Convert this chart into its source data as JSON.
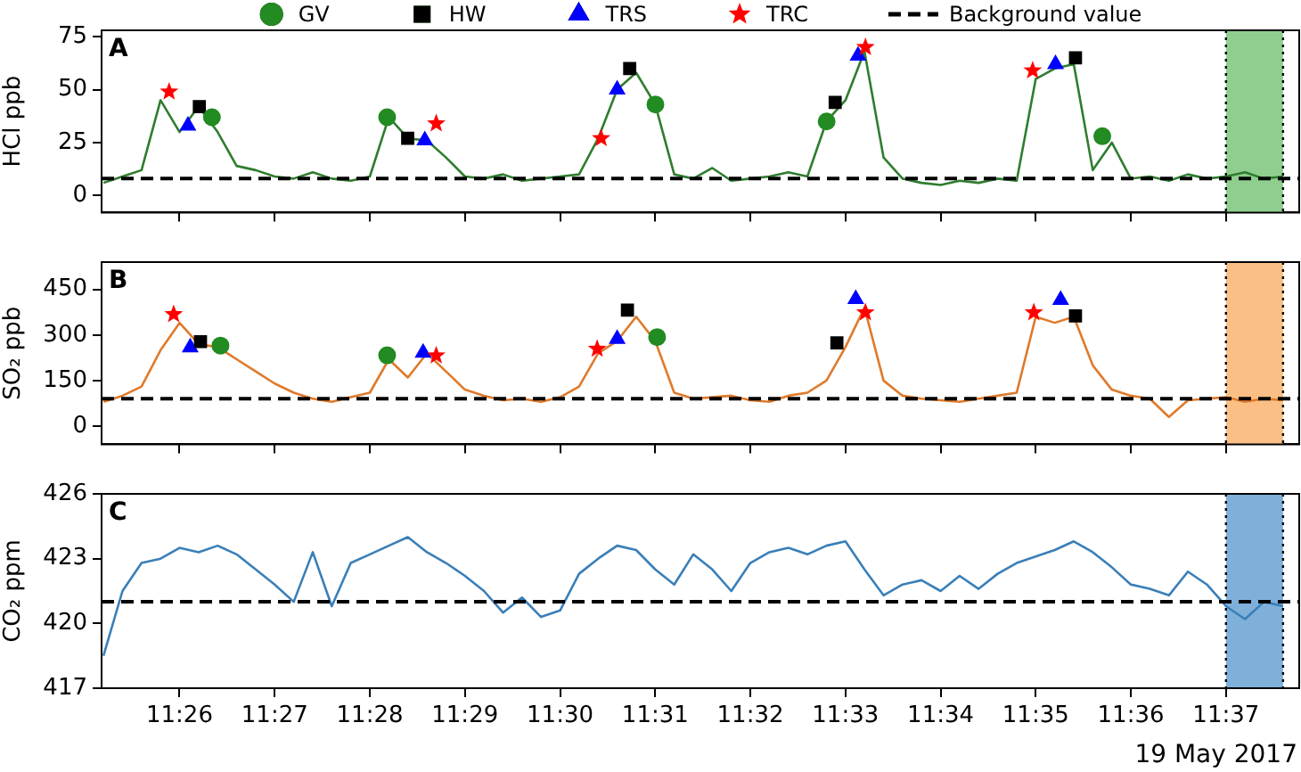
{
  "chart_data": [
    {
      "type": "line",
      "title": "A",
      "ylabel": "HCl ppb",
      "xlim": [
        11.41967,
        11.6295
      ],
      "ylim": [
        -8,
        78
      ],
      "yticks": [
        0,
        25,
        50,
        75
      ],
      "tick_labels": "y",
      "legend": "top",
      "xticks": [
        {
          "value": 11.43333,
          "label": null
        },
        {
          "value": 11.45,
          "label": null
        },
        {
          "value": 11.46667,
          "label": null
        },
        {
          "value": 11.48333,
          "label": null
        },
        {
          "value": 11.5,
          "label": null
        },
        {
          "value": 11.51667,
          "label": null
        },
        {
          "value": 11.53333,
          "label": null
        },
        {
          "value": 11.55,
          "label": null
        },
        {
          "value": 11.56667,
          "label": null
        },
        {
          "value": 11.58333,
          "label": null
        },
        {
          "value": 11.6,
          "label": null
        },
        {
          "value": 11.61667,
          "label": null
        }
      ],
      "x": [
        11.42,
        11.42333,
        11.42667,
        11.43,
        11.43333,
        11.43667,
        11.44,
        11.44333,
        11.44667,
        11.45,
        11.45333,
        11.45667,
        11.46,
        11.46333,
        11.46667,
        11.47,
        11.47333,
        11.47667,
        11.48,
        11.48333,
        11.48667,
        11.49,
        11.49333,
        11.49667,
        11.5,
        11.50333,
        11.50667,
        11.51,
        11.51333,
        11.51667,
        11.52,
        11.52333,
        11.52667,
        11.53,
        11.53333,
        11.53667,
        11.54,
        11.54333,
        11.54667,
        11.55,
        11.55333,
        11.55667,
        11.56,
        11.56333,
        11.56667,
        11.57,
        11.57333,
        11.57667,
        11.58,
        11.58333,
        11.58667,
        11.59,
        11.59333,
        11.59667,
        11.6,
        11.60333,
        11.60667,
        11.61,
        11.61333,
        11.61667,
        11.62,
        11.62333,
        11.62667
      ],
      "series": [
        {
          "color": "#2f7d2f",
          "values": [
            6,
            9,
            12,
            45,
            30,
            42,
            30,
            14,
            12,
            9,
            8,
            11,
            8,
            7,
            9,
            37,
            27,
            26,
            18,
            9,
            8,
            10,
            7,
            8,
            9,
            10,
            27,
            50,
            58,
            43,
            10,
            8,
            13,
            7,
            8,
            9,
            11,
            9,
            35,
            45,
            68,
            18,
            8,
            6,
            5,
            7,
            6,
            8,
            7,
            55,
            60,
            62,
            12,
            25,
            8,
            9,
            7,
            10,
            8,
            9,
            11,
            8,
            9
          ]
        },
        {
          "name": "GV",
          "type": "scatter",
          "marker": "circle",
          "color": "#228b22",
          "x": [
            11.439,
            11.4697,
            11.5167,
            11.5467,
            11.595
          ],
          "values": [
            37,
            37,
            43,
            35,
            28
          ]
        },
        {
          "name": "HW",
          "type": "scatter",
          "marker": "square",
          "color": "#000000",
          "x": [
            11.4368,
            11.4733,
            11.5122,
            11.5482,
            11.5903
          ],
          "values": [
            42,
            27,
            60,
            44,
            65
          ]
        },
        {
          "name": "TRS",
          "type": "scatter",
          "marker": "triangle",
          "color": "#0000ff",
          "x": [
            11.4348,
            11.4763,
            11.51,
            11.5522,
            11.5868
          ],
          "values": [
            33,
            26,
            50,
            66,
            62
          ]
        },
        {
          "name": "TRC",
          "type": "scatter",
          "marker": "star",
          "color": "#ff0000",
          "x": [
            11.4315,
            11.4783,
            11.5072,
            11.5535,
            11.5828
          ],
          "values": [
            49,
            34,
            27,
            70,
            59
          ]
        }
      ],
      "ref_lines": [
        {
          "axis": "y",
          "value": 8,
          "label": "Background value",
          "color": "#000000",
          "line_style": "dashed"
        }
      ],
      "bands": [
        {
          "axis": "x",
          "from": 11.61667,
          "to": 11.62667,
          "color": "#8fce8f"
        }
      ]
    },
    {
      "type": "line",
      "title": "B",
      "ylabel": "SO₂ ppb",
      "xlim": [
        11.41967,
        11.6295
      ],
      "ylim": [
        -60,
        540
      ],
      "yticks": [
        0,
        150,
        300,
        450
      ],
      "tick_labels": "y",
      "xticks": [
        {
          "value": 11.43333,
          "label": null
        },
        {
          "value": 11.45,
          "label": null
        },
        {
          "value": 11.46667,
          "label": null
        },
        {
          "value": 11.48333,
          "label": null
        },
        {
          "value": 11.5,
          "label": null
        },
        {
          "value": 11.51667,
          "label": null
        },
        {
          "value": 11.53333,
          "label": null
        },
        {
          "value": 11.55,
          "label": null
        },
        {
          "value": 11.56667,
          "label": null
        },
        {
          "value": 11.58333,
          "label": null
        },
        {
          "value": 11.6,
          "label": null
        },
        {
          "value": 11.61667,
          "label": null
        }
      ],
      "x": [
        11.42,
        11.42333,
        11.42667,
        11.43,
        11.43333,
        11.43667,
        11.44,
        11.44333,
        11.44667,
        11.45,
        11.45333,
        11.45667,
        11.46,
        11.46333,
        11.46667,
        11.47,
        11.47333,
        11.47667,
        11.48,
        11.48333,
        11.48667,
        11.49,
        11.49333,
        11.49667,
        11.5,
        11.50333,
        11.50667,
        11.51,
        11.51333,
        11.51667,
        11.52,
        11.52333,
        11.52667,
        11.53,
        11.53333,
        11.53667,
        11.54,
        11.54333,
        11.54667,
        11.55,
        11.55333,
        11.55667,
        11.56,
        11.56333,
        11.56667,
        11.57,
        11.57333,
        11.57667,
        11.58,
        11.58333,
        11.58667,
        11.59,
        11.59333,
        11.59667,
        11.6,
        11.60333,
        11.60667,
        11.61,
        11.61333,
        11.61667,
        11.62,
        11.62333,
        11.62667
      ],
      "series": [
        {
          "color": "#e07a2a",
          "values": [
            80,
            100,
            130,
            250,
            340,
            270,
            260,
            220,
            180,
            140,
            110,
            90,
            80,
            95,
            110,
            220,
            160,
            240,
            180,
            120,
            100,
            85,
            90,
            80,
            95,
            130,
            240,
            280,
            360,
            280,
            110,
            90,
            95,
            100,
            85,
            80,
            100,
            110,
            150,
            260,
            390,
            150,
            100,
            90,
            85,
            80,
            90,
            100,
            110,
            360,
            340,
            360,
            200,
            120,
            100,
            90,
            30,
            85,
            90,
            95,
            80,
            90,
            85
          ]
        },
        {
          "type": "scatter",
          "marker": "circle",
          "color": "#228b22",
          "x": [
            11.4405,
            11.4697,
            11.517
          ],
          "values": [
            265,
            233,
            293
          ]
        },
        {
          "type": "scatter",
          "marker": "square",
          "color": "#000000",
          "x": [
            11.437,
            11.5118,
            11.5485,
            11.5903
          ],
          "values": [
            278,
            382,
            274,
            363
          ]
        },
        {
          "type": "scatter",
          "marker": "triangle",
          "color": "#0000ff",
          "x": [
            11.4352,
            11.476,
            11.51,
            11.5518,
            11.5877
          ],
          "values": [
            259,
            241,
            287,
            418,
            415
          ]
        },
        {
          "type": "scatter",
          "marker": "star",
          "color": "#ff0000",
          "x": [
            11.4323,
            11.4783,
            11.5065,
            11.5535,
            11.583
          ],
          "values": [
            368,
            232,
            254,
            374,
            374
          ]
        }
      ],
      "ref_lines": [
        {
          "axis": "y",
          "value": 90,
          "color": "#000000",
          "line_style": "dashed"
        }
      ],
      "bands": [
        {
          "axis": "x",
          "from": 11.61667,
          "to": 11.62667,
          "color": "#fbbf85"
        }
      ]
    },
    {
      "type": "line",
      "title": "C",
      "ylabel": "CO₂ ppm",
      "xlim": [
        11.41967,
        11.6295
      ],
      "ylim": [
        417,
        426
      ],
      "yticks": [
        417,
        420,
        423,
        426
      ],
      "xticks": [
        {
          "value": 11.43333,
          "label": "11:26"
        },
        {
          "value": 11.45,
          "label": "11:27"
        },
        {
          "value": 11.46667,
          "label": "11:28"
        },
        {
          "value": 11.48333,
          "label": "11:29"
        },
        {
          "value": 11.5,
          "label": "11:30"
        },
        {
          "value": 11.51667,
          "label": "11:31"
        },
        {
          "value": 11.53333,
          "label": "11:32"
        },
        {
          "value": 11.55,
          "label": "11:33"
        },
        {
          "value": 11.56667,
          "label": "11:34"
        },
        {
          "value": 11.58333,
          "label": "11:35"
        },
        {
          "value": 11.6,
          "label": "11:36"
        },
        {
          "value": 11.61667,
          "label": "11:37"
        }
      ],
      "annotations": [
        "19 May 2017"
      ],
      "x": [
        11.42,
        11.42333,
        11.42667,
        11.43,
        11.43333,
        11.43667,
        11.44,
        11.44333,
        11.44667,
        11.45,
        11.45333,
        11.45667,
        11.46,
        11.46333,
        11.46667,
        11.47,
        11.47333,
        11.47667,
        11.48,
        11.48333,
        11.48667,
        11.49,
        11.49333,
        11.49667,
        11.5,
        11.50333,
        11.50667,
        11.51,
        11.51333,
        11.51667,
        11.52,
        11.52333,
        11.52667,
        11.53,
        11.53333,
        11.53667,
        11.54,
        11.54333,
        11.54667,
        11.55,
        11.55333,
        11.55667,
        11.56,
        11.56333,
        11.56667,
        11.57,
        11.57333,
        11.57667,
        11.58,
        11.58333,
        11.58667,
        11.59,
        11.59333,
        11.59667,
        11.6,
        11.60333,
        11.60667,
        11.61,
        11.61333,
        11.61667,
        11.62,
        11.62333,
        11.62667
      ],
      "series": [
        {
          "color": "#3a7fb8",
          "values": [
            418.5,
            421.5,
            422.8,
            423,
            423.5,
            423.3,
            423.6,
            423.2,
            422.5,
            421.8,
            421,
            423.3,
            420.8,
            422.8,
            423.2,
            423.6,
            424,
            423.3,
            422.8,
            422.2,
            421.5,
            420.5,
            421.2,
            420.3,
            420.6,
            422.3,
            423,
            423.6,
            423.4,
            422.5,
            421.8,
            423.2,
            422.5,
            421.5,
            422.8,
            423.3,
            423.5,
            423.2,
            423.6,
            423.8,
            422.5,
            421.3,
            421.8,
            422,
            421.5,
            422.2,
            421.6,
            422.3,
            422.8,
            423.1,
            423.4,
            423.8,
            423.3,
            422.6,
            421.8,
            421.6,
            421.3,
            422.4,
            421.8,
            420.8,
            420.2,
            421,
            420.8
          ]
        }
      ],
      "ref_lines": [
        {
          "axis": "y",
          "value": 421,
          "color": "#000000",
          "line_style": "dashed"
        }
      ],
      "bands": [
        {
          "axis": "x",
          "from": 11.61667,
          "to": 11.62667,
          "color": "#7fb0d9"
        }
      ]
    }
  ]
}
